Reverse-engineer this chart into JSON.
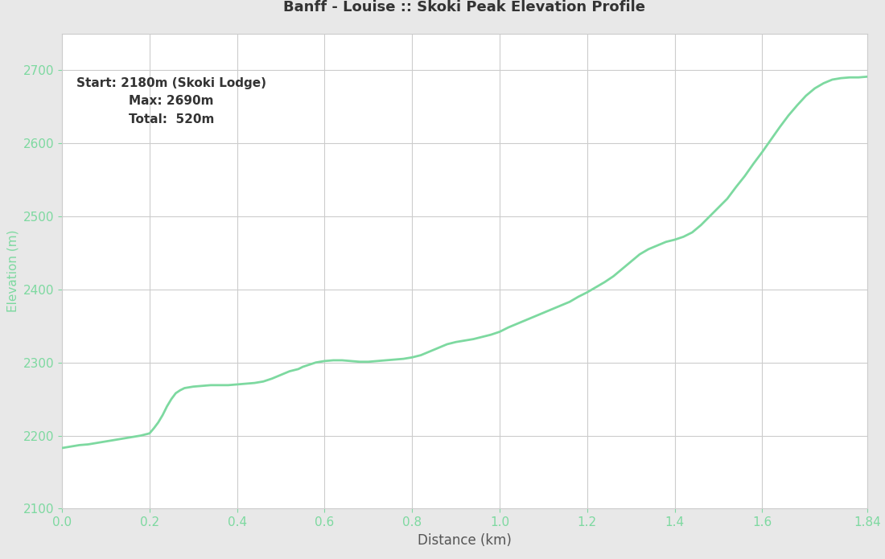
{
  "title": "Banff - Louise :: Skoki Peak Elevation Profile",
  "annotation_line1": "Start: 2180m (Skoki Lodge)",
  "annotation_line2": "Max: 2690m",
  "annotation_line3": "Total:  520m",
  "xlabel": "Distance (km)",
  "ylabel": "Elevation (m)",
  "xlim": [
    0.0,
    1.84
  ],
  "ylim": [
    2100,
    2750
  ],
  "yticks": [
    2100,
    2200,
    2300,
    2400,
    2500,
    2600,
    2700
  ],
  "xticks": [
    0.0,
    0.2,
    0.4,
    0.6,
    0.8,
    1.0,
    1.2,
    1.4,
    1.6,
    1.84
  ],
  "xtick_labels": [
    "0.0",
    "0.2",
    "0.4",
    "0.6",
    "0.8",
    "1.0",
    "1.2",
    "1.4",
    "1.6",
    "1.84"
  ],
  "line_color": "#7dd9a0",
  "line_width": 2.0,
  "grid_color": "#cccccc",
  "plot_bg_color": "#ffffff",
  "fig_bg_color": "#e8e8e8",
  "title_fontsize": 13,
  "annotation_fontsize": 11,
  "tick_label_color": "#7dd9a0",
  "ylabel_color": "#7dd9a0",
  "xlabel_color": "#555555",
  "axis_label_fontsize": 11,
  "profile": {
    "x": [
      0.0,
      0.02,
      0.04,
      0.06,
      0.08,
      0.1,
      0.12,
      0.14,
      0.16,
      0.18,
      0.2,
      0.21,
      0.22,
      0.23,
      0.24,
      0.25,
      0.26,
      0.27,
      0.28,
      0.3,
      0.32,
      0.34,
      0.36,
      0.38,
      0.4,
      0.42,
      0.44,
      0.46,
      0.48,
      0.5,
      0.52,
      0.54,
      0.55,
      0.56,
      0.57,
      0.58,
      0.59,
      0.6,
      0.62,
      0.64,
      0.66,
      0.68,
      0.7,
      0.72,
      0.74,
      0.76,
      0.78,
      0.79,
      0.8,
      0.82,
      0.84,
      0.86,
      0.88,
      0.9,
      0.92,
      0.94,
      0.96,
      0.98,
      1.0,
      1.02,
      1.04,
      1.06,
      1.08,
      1.1,
      1.12,
      1.14,
      1.16,
      1.18,
      1.2,
      1.22,
      1.24,
      1.26,
      1.28,
      1.3,
      1.32,
      1.34,
      1.36,
      1.38,
      1.4,
      1.41,
      1.42,
      1.44,
      1.46,
      1.48,
      1.5,
      1.52,
      1.54,
      1.56,
      1.58,
      1.6,
      1.62,
      1.64,
      1.66,
      1.68,
      1.7,
      1.72,
      1.74,
      1.76,
      1.78,
      1.8,
      1.82,
      1.84
    ],
    "y": [
      2183,
      2185,
      2187,
      2188,
      2190,
      2192,
      2194,
      2196,
      2198,
      2200,
      2203,
      2210,
      2218,
      2228,
      2240,
      2250,
      2258,
      2262,
      2265,
      2267,
      2268,
      2269,
      2269,
      2269,
      2270,
      2271,
      2272,
      2274,
      2278,
      2283,
      2288,
      2291,
      2294,
      2296,
      2298,
      2300,
      2301,
      2302,
      2303,
      2303,
      2302,
      2301,
      2301,
      2302,
      2303,
      2304,
      2305,
      2306,
      2307,
      2310,
      2315,
      2320,
      2325,
      2328,
      2330,
      2332,
      2335,
      2338,
      2342,
      2348,
      2353,
      2358,
      2363,
      2368,
      2373,
      2378,
      2383,
      2390,
      2396,
      2403,
      2410,
      2418,
      2428,
      2438,
      2448,
      2455,
      2460,
      2465,
      2468,
      2470,
      2472,
      2478,
      2488,
      2500,
      2512,
      2524,
      2540,
      2555,
      2572,
      2588,
      2605,
      2622,
      2638,
      2652,
      2665,
      2675,
      2682,
      2687,
      2689,
      2690,
      2690,
      2691
    ]
  }
}
